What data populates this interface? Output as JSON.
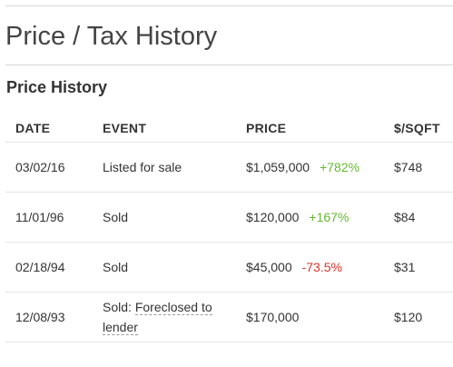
{
  "page": {
    "title": "Price / Tax History"
  },
  "price_history": {
    "heading": "Price History",
    "columns": {
      "date": "DATE",
      "event": "EVENT",
      "price": "PRICE",
      "sqft": "$/SQFT"
    },
    "rows": [
      {
        "date": "03/02/16",
        "event": "Listed for sale",
        "price": "$1,059,000",
        "change": "+782%",
        "change_direction": "up",
        "sqft": "$748"
      },
      {
        "date": "11/01/96",
        "event": "Sold",
        "price": "$120,000",
        "change": "+167%",
        "change_direction": "up",
        "sqft": "$84"
      },
      {
        "date": "02/18/94",
        "event": "Sold",
        "price": "$45,000",
        "change": "-73.5%",
        "change_direction": "down",
        "sqft": "$31"
      },
      {
        "date": "12/08/93",
        "event_prefix": "Sold: ",
        "event_link_part1": "Foreclosed to",
        "event_link_part2": "lender",
        "price": "$170,000",
        "change": "",
        "sqft": "$120"
      }
    ]
  },
  "colors": {
    "increase": "#64b82e",
    "decrease": "#d9342b",
    "divider": "#e6e6e6"
  }
}
